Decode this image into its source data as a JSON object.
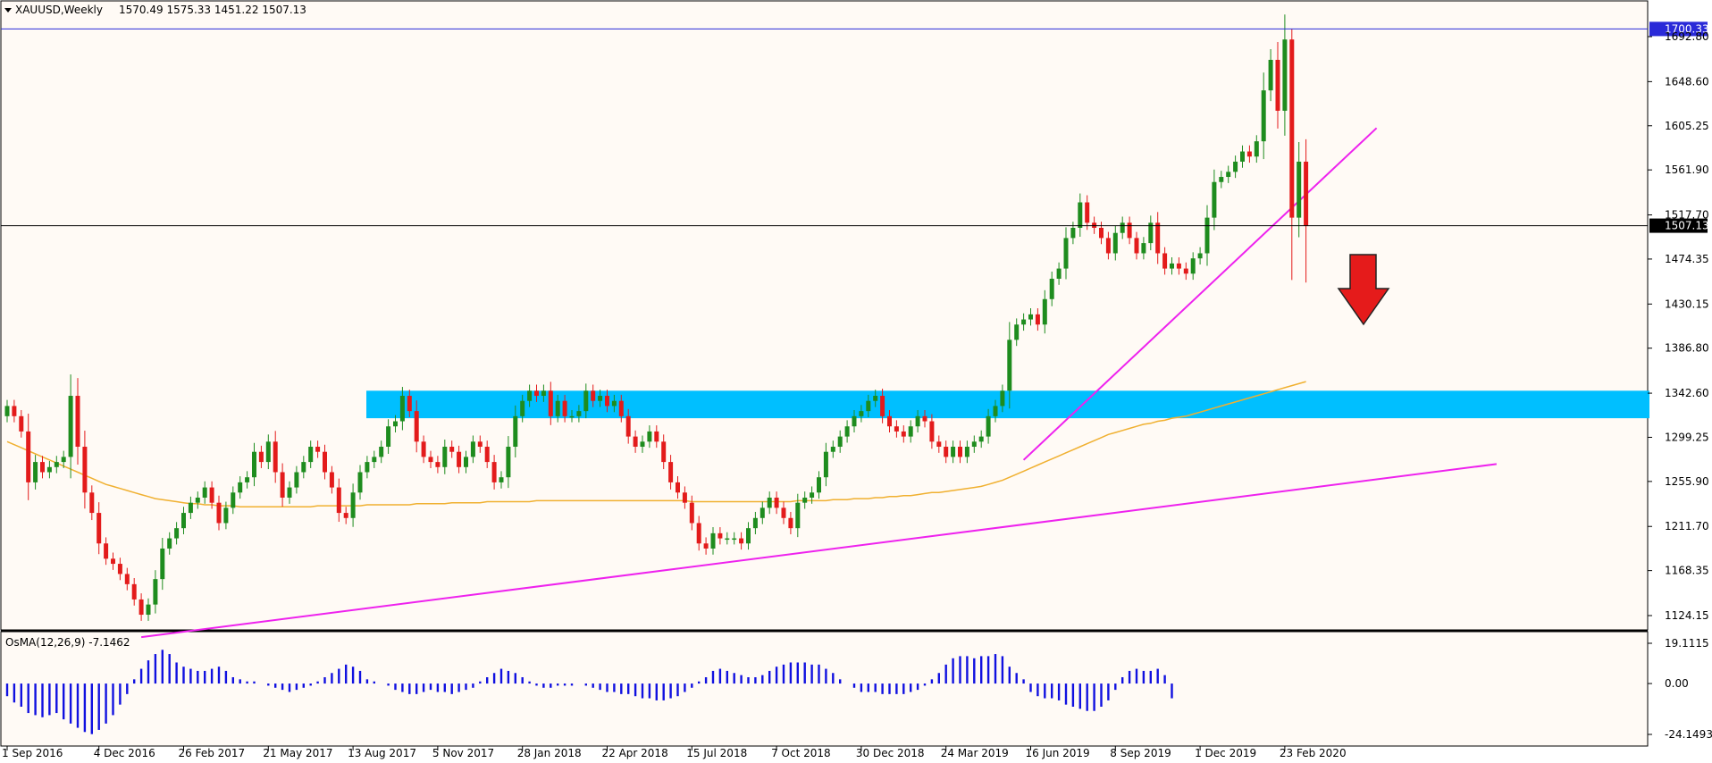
{
  "header": {
    "symbol": "XAUUSD,Weekly",
    "ohlc": "1570.49 1575.33 1451.22 1507.13"
  },
  "osma": {
    "label": "OsMA(12,26,9) -7.1462",
    "ticks": [
      "19.1115",
      "0.00",
      "-24.1493"
    ],
    "range": [
      -24.1493,
      19.1115
    ],
    "values": [
      -6,
      -9,
      -11,
      -14,
      -15,
      -16,
      -15,
      -14,
      -17,
      -19,
      -21,
      -23,
      -24,
      -22,
      -19,
      -15,
      -10,
      -5,
      2,
      7,
      11,
      14,
      16,
      14,
      10,
      8,
      7,
      6,
      6,
      7,
      8,
      6,
      3,
      2,
      1,
      1,
      0,
      -1,
      -2,
      -3,
      -4,
      -3,
      -2,
      -1,
      1,
      3,
      5,
      7,
      9,
      8,
      6,
      2,
      1,
      0,
      -1,
      -3,
      -4,
      -5,
      -5,
      -4,
      -3,
      -4,
      -4,
      -5,
      -4,
      -3,
      -2,
      1,
      3,
      5,
      7,
      6,
      5,
      3,
      1,
      -1,
      -2,
      -2,
      -1,
      -1,
      -1,
      0,
      -1,
      -2,
      -3,
      -4,
      -4,
      -5,
      -5,
      -6,
      -7,
      -7,
      -8,
      -8,
      -7,
      -6,
      -4,
      -2,
      1,
      3,
      6,
      7,
      6,
      5,
      4,
      3,
      3,
      4,
      6,
      8,
      9,
      10,
      10,
      10,
      9,
      9,
      7,
      5,
      2,
      0,
      -2,
      -4,
      -4,
      -4,
      -5,
      -5,
      -5,
      -5,
      -4,
      -3,
      -1,
      2,
      5,
      9,
      12,
      13,
      13,
      12,
      13,
      13,
      14,
      13,
      8,
      5,
      2,
      -4,
      -6,
      -7,
      -7,
      -8,
      -10,
      -11,
      -12,
      -13,
      -13,
      -11,
      -8,
      -3,
      3,
      6,
      7,
      6,
      6,
      7,
      4,
      -7
    ]
  },
  "chart_data": {
    "type": "candlestick",
    "title": "XAUUSD,Weekly",
    "x_tick_labels": [
      "1 Sep 2016",
      "4 Dec 2016",
      "26 Feb 2017",
      "21 May 2017",
      "13 Aug 2017",
      "5 Nov 2017",
      "28 Jan 2018",
      "22 Apr 2018",
      "15 Jul 2018",
      "7 Oct 2018",
      "30 Dec 2018",
      "24 Mar 2019",
      "16 Jun 2019",
      "8 Sep 2019",
      "1 Dec 2019",
      "23 Feb 2020"
    ],
    "x_tick_index": [
      0,
      13,
      25,
      37,
      49,
      61,
      73,
      85,
      97,
      109,
      121,
      133,
      145,
      157,
      169,
      181
    ],
    "y_tick_labels": [
      "1692.80",
      "1648.60",
      "1605.25",
      "1561.90",
      "1517.70",
      "1474.35",
      "1430.15",
      "1386.80",
      "1342.60",
      "1299.25",
      "1255.90",
      "1211.70",
      "1168.35",
      "1124.15"
    ],
    "ylim": [
      1103,
      1725
    ],
    "price_labels": {
      "high": "1700.33",
      "current": "1507.13"
    },
    "closes": [
      1330,
      1320,
      1305,
      1255,
      1275,
      1265,
      1270,
      1275,
      1280,
      1340,
      1290,
      1245,
      1225,
      1195,
      1180,
      1175,
      1165,
      1155,
      1140,
      1125,
      1135,
      1160,
      1190,
      1200,
      1210,
      1225,
      1235,
      1240,
      1250,
      1235,
      1215,
      1230,
      1245,
      1255,
      1260,
      1285,
      1275,
      1295,
      1265,
      1240,
      1250,
      1265,
      1275,
      1290,
      1285,
      1265,
      1250,
      1225,
      1220,
      1245,
      1265,
      1275,
      1280,
      1290,
      1310,
      1315,
      1340,
      1325,
      1295,
      1280,
      1275,
      1270,
      1290,
      1285,
      1270,
      1280,
      1295,
      1290,
      1275,
      1255,
      1260,
      1290,
      1320,
      1335,
      1345,
      1340,
      1345,
      1320,
      1335,
      1320,
      1320,
      1325,
      1345,
      1335,
      1340,
      1330,
      1335,
      1320,
      1300,
      1290,
      1295,
      1305,
      1295,
      1275,
      1255,
      1245,
      1235,
      1215,
      1195,
      1190,
      1205,
      1200,
      1200,
      1200,
      1195,
      1210,
      1220,
      1230,
      1240,
      1230,
      1220,
      1210,
      1235,
      1240,
      1245,
      1260,
      1285,
      1290,
      1300,
      1310,
      1320,
      1325,
      1335,
      1340,
      1320,
      1310,
      1305,
      1300,
      1310,
      1320,
      1315,
      1295,
      1290,
      1280,
      1290,
      1280,
      1290,
      1295,
      1300,
      1320,
      1330,
      1345,
      1395,
      1410,
      1415,
      1420,
      1410,
      1435,
      1455,
      1465,
      1495,
      1505,
      1530,
      1510,
      1505,
      1495,
      1480,
      1500,
      1510,
      1495,
      1480,
      1490,
      1510,
      1480,
      1465,
      1470,
      1465,
      1460,
      1475,
      1480,
      1515,
      1550,
      1555,
      1560,
      1570,
      1580,
      1575,
      1590,
      1640,
      1670,
      1620,
      1690,
      1515,
      1570,
      1507.13
    ],
    "moving_average": {
      "start_index": 0,
      "values": [
        1295,
        1292,
        1289,
        1286,
        1283,
        1280,
        1277,
        1274,
        1271,
        1268,
        1265,
        1262,
        1259,
        1256,
        1253,
        1251,
        1249,
        1247,
        1245,
        1243,
        1241,
        1239,
        1238,
        1237,
        1236,
        1235,
        1234,
        1234,
        1233,
        1233,
        1232,
        1232,
        1232,
        1231,
        1231,
        1231,
        1231,
        1231,
        1231,
        1231,
        1231,
        1231,
        1231,
        1231,
        1232,
        1232,
        1232,
        1232,
        1232,
        1232,
        1232,
        1233,
        1233,
        1233,
        1233,
        1233,
        1233,
        1233,
        1234,
        1234,
        1234,
        1234,
        1234,
        1235,
        1235,
        1235,
        1235,
        1235,
        1236,
        1236,
        1236,
        1236,
        1236,
        1236,
        1236,
        1237,
        1237,
        1237,
        1237,
        1237,
        1237,
        1237,
        1237,
        1237,
        1237,
        1237,
        1237,
        1237,
        1237,
        1237,
        1237,
        1237,
        1237,
        1237,
        1237,
        1237,
        1237,
        1236,
        1236,
        1236,
        1236,
        1236,
        1236,
        1236,
        1236,
        1236,
        1236,
        1236,
        1236,
        1236,
        1236,
        1236,
        1237,
        1237,
        1237,
        1237,
        1237,
        1238,
        1238,
        1238,
        1239,
        1239,
        1239,
        1240,
        1240,
        1241,
        1241,
        1242,
        1242,
        1243,
        1244,
        1245,
        1245,
        1246,
        1247,
        1248,
        1249,
        1250,
        1251,
        1253,
        1255,
        1257,
        1260,
        1263,
        1266,
        1269,
        1272,
        1275,
        1278,
        1281,
        1284,
        1287,
        1290,
        1293,
        1296,
        1299,
        1302,
        1304,
        1306,
        1308,
        1310,
        1312,
        1313,
        1315,
        1316,
        1318,
        1319,
        1320,
        1322,
        1324,
        1326,
        1328,
        1330,
        1332,
        1334,
        1336,
        1338,
        1340,
        1342,
        1344,
        1346,
        1348,
        1350,
        1352,
        1354
      ]
    },
    "support_zone": [
      1318,
      1345
    ],
    "trendlines": [
      {
        "from": [
          19,
          1103
        ],
        "to": [
          211,
          1273
        ]
      },
      {
        "from": [
          144,
          1277
        ],
        "to": [
          194,
          1603
        ]
      }
    ],
    "annotation": "red down arrow"
  }
}
